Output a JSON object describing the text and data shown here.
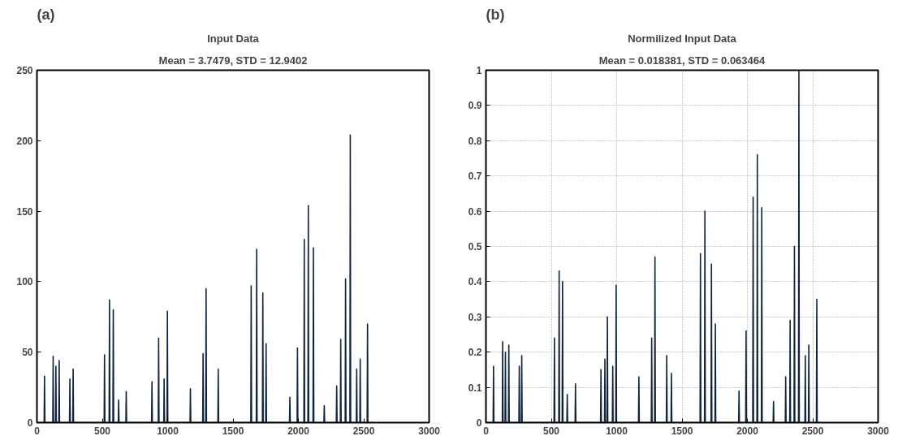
{
  "chart_data": [
    {
      "type": "line",
      "title": "Input Data",
      "subtitle": "Mean = 3.7479, STD = 12.9402",
      "annotations": [
        "(a)"
      ],
      "series": [
        {
          "color": "#10243f",
          "x": [
            1,
            55,
            58,
            61,
            121,
            124,
            127,
            142,
            145,
            148,
            167,
            170,
            173,
            249,
            252,
            255,
            274,
            277,
            280,
            514,
            517,
            520,
            552,
            555,
            558,
            581,
            584,
            587,
            622,
            625,
            628,
            680,
            683,
            686,
            877,
            880,
            883,
            928,
            931,
            934,
            970,
            973,
            976,
            995,
            998,
            1001,
            1171,
            1174,
            1177,
            1268,
            1271,
            1274,
            1291,
            1294,
            1297,
            1384,
            1387,
            1390,
            1636,
            1639,
            1642,
            1678,
            1681,
            1684,
            1725,
            1728,
            1731,
            1750,
            1753,
            1756,
            1932,
            1935,
            1938,
            1990,
            1993,
            1996,
            2042,
            2045,
            2048,
            2073,
            2076,
            2079,
            2112,
            2115,
            2118,
            2195,
            2198,
            2201,
            2290,
            2293,
            2296,
            2321,
            2324,
            2327,
            2358,
            2361,
            2364,
            2394,
            2397,
            2400,
            2443,
            2446,
            2449,
            2470,
            2473,
            2476,
            2526,
            2529,
            2532,
            2560
          ],
          "values": [
            0,
            0,
            33,
            0,
            0,
            47,
            0,
            0,
            40,
            0,
            0,
            44,
            0,
            0,
            31,
            0,
            0,
            38,
            0,
            0,
            48,
            0,
            0,
            87,
            0,
            0,
            80,
            0,
            0,
            16,
            0,
            0,
            22,
            0,
            0,
            29,
            0,
            0,
            60,
            0,
            0,
            31,
            0,
            0,
            79,
            0,
            0,
            24,
            0,
            0,
            49,
            0,
            0,
            95,
            0,
            0,
            38,
            0,
            0,
            97,
            0,
            0,
            123,
            0,
            0,
            92,
            0,
            0,
            56,
            0,
            0,
            18,
            0,
            0,
            53,
            0,
            0,
            130,
            0,
            0,
            154,
            0,
            0,
            124,
            0,
            0,
            12,
            0,
            0,
            26,
            0,
            0,
            59,
            0,
            0,
            102,
            0,
            0,
            204,
            0,
            0,
            38,
            0,
            0,
            45,
            0,
            0,
            70,
            0,
            0
          ]
        }
      ],
      "xlim": [
        0,
        3000
      ],
      "xticks": [
        0,
        500,
        1000,
        1500,
        2000,
        2500,
        3000
      ],
      "ylim": [
        0,
        250
      ],
      "yticks": [
        0,
        50,
        100,
        150,
        200,
        250
      ],
      "grid": false,
      "marker": "none",
      "line_style": "solid"
    },
    {
      "type": "line",
      "title": "Normilized Input Data",
      "subtitle": "Mean = 0.018381, STD = 0.063464",
      "annotations": [
        "(b)"
      ],
      "series": [
        {
          "color": "#10243f",
          "x": [
            1,
            55,
            58,
            61,
            125,
            128,
            131,
            146,
            149,
            152,
            172,
            175,
            178,
            252,
            255,
            258,
            271,
            274,
            277,
            521,
            524,
            527,
            557,
            560,
            563,
            583,
            586,
            589,
            619,
            622,
            625,
            682,
            685,
            688,
            877,
            880,
            883,
            907,
            910,
            913,
            926,
            929,
            932,
            967,
            970,
            973,
            993,
            996,
            999,
            1167,
            1170,
            1173,
            1265,
            1268,
            1271,
            1290,
            1293,
            1296,
            1380,
            1383,
            1386,
            1416,
            1419,
            1422,
            1638,
            1641,
            1644,
            1672,
            1675,
            1678,
            1722,
            1725,
            1728,
            1752,
            1755,
            1758,
            1933,
            1936,
            1939,
            1987,
            1990,
            1993,
            2041,
            2044,
            2047,
            2073,
            2076,
            2079,
            2107,
            2110,
            2113,
            2197,
            2200,
            2203,
            2290,
            2293,
            2296,
            2324,
            2327,
            2330,
            2357,
            2360,
            2363,
            2391,
            2394,
            2397,
            2440,
            2443,
            2446,
            2467,
            2470,
            2473,
            2528,
            2531,
            2534,
            2560
          ],
          "values": [
            0,
            0,
            0.16,
            0,
            0,
            0.23,
            0,
            0,
            0.2,
            0,
            0,
            0.22,
            0,
            0,
            0.16,
            0,
            0,
            0.19,
            0,
            0,
            0.24,
            0,
            0,
            0.43,
            0,
            0,
            0.4,
            0,
            0,
            0.08,
            0,
            0,
            0.11,
            0,
            0,
            0.15,
            0,
            0,
            0.18,
            0,
            0,
            0.3,
            0,
            0,
            0.16,
            0,
            0,
            0.39,
            0,
            0,
            0.13,
            0,
            0,
            0.24,
            0,
            0,
            0.47,
            0,
            0,
            0.19,
            0,
            0,
            0.14,
            0,
            0,
            0.48,
            0,
            0,
            0.6,
            0,
            0,
            0.45,
            0,
            0,
            0.28,
            0,
            0,
            0.09,
            0,
            0,
            0.26,
            0,
            0,
            0.64,
            0,
            0,
            0.76,
            0,
            0,
            0.61,
            0,
            0,
            0.06,
            0,
            0,
            0.13,
            0,
            0,
            0.29,
            0,
            0,
            0.5,
            0,
            0,
            1,
            0,
            0,
            0.19,
            0,
            0,
            0.22,
            0,
            0,
            0.35,
            0,
            0
          ]
        }
      ],
      "xlim": [
        0,
        3000
      ],
      "xticks": [
        0,
        500,
        1000,
        1500,
        2000,
        2500,
        3000
      ],
      "ylim": [
        0,
        1
      ],
      "yticks": [
        0,
        0.1,
        0.2,
        0.3,
        0.4,
        0.5,
        0.6,
        0.7,
        0.8,
        0.9,
        1
      ],
      "grid": true,
      "marker": "none",
      "line_style": "solid"
    }
  ]
}
